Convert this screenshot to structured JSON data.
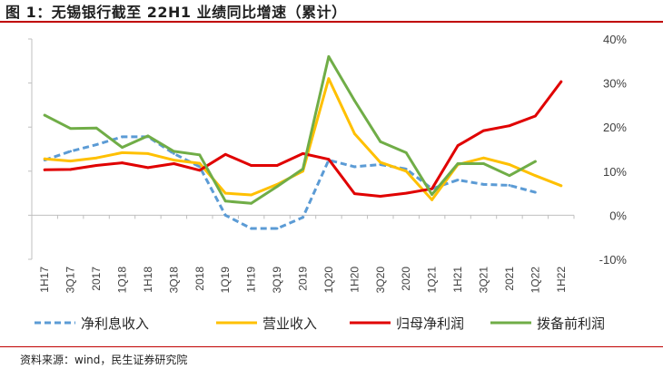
{
  "header": {
    "title": "图 1：无锡银行截至 22H1 业绩同比增速（累计）"
  },
  "footer": {
    "source": "资料来源：wind，民生证券研究院"
  },
  "chart_data": {
    "type": "line",
    "title": "图 1：无锡银行截至 22H1 业绩同比增速（累计）",
    "xlabel": "",
    "ylabel": "",
    "ylim": [
      -10,
      40
    ],
    "yticks": [
      -10,
      0,
      10,
      20,
      30,
      40
    ],
    "ytick_labels": [
      "-10%",
      "0%",
      "10%",
      "20%",
      "30%",
      "40%"
    ],
    "y_axis_side": "right",
    "grid": false,
    "legend_position": "bottom",
    "categories": [
      "1H17",
      "3Q17",
      "2017",
      "1Q18",
      "1H18",
      "3Q18",
      "2018",
      "1Q19",
      "1H19",
      "3Q19",
      "2019",
      "1Q20",
      "1H20",
      "3Q20",
      "2020",
      "1Q21",
      "1H21",
      "3Q21",
      "2021",
      "1Q22",
      "1H22"
    ],
    "series": [
      {
        "name": "净利息收入",
        "color": "#5b9bd5",
        "dashed": true,
        "values": [
          12.5,
          14.5,
          16,
          17.8,
          17.8,
          14,
          11,
          0,
          -3,
          -3,
          -0.5,
          12.5,
          11,
          11.5,
          10.5,
          6,
          8,
          7,
          6.8,
          5.2,
          null
        ]
      },
      {
        "name": "营业收入",
        "color": "#ffc000",
        "dashed": false,
        "values": [
          12.8,
          12.3,
          13,
          14.2,
          14,
          12.5,
          11.8,
          5,
          4.6,
          7,
          10,
          31,
          18.5,
          12,
          10,
          3.5,
          11.5,
          13,
          11.5,
          9,
          6.7
        ]
      },
      {
        "name": "归母净利润",
        "color": "#e00000",
        "dashed": false,
        "values": [
          10.3,
          10.4,
          11.3,
          11.9,
          10.8,
          11.7,
          10.2,
          13.8,
          11.3,
          11.3,
          14,
          12.7,
          4.9,
          4.3,
          5,
          6,
          15.8,
          19.2,
          20.3,
          22.5,
          30.3
        ]
      },
      {
        "name": "拨备前利润",
        "color": "#70ad47",
        "dashed": false,
        "values": [
          22.7,
          19.7,
          19.8,
          15.4,
          18,
          14.5,
          13.7,
          3.2,
          2.7,
          6.5,
          10.5,
          36,
          26,
          16.7,
          14.2,
          4.7,
          11.7,
          11.7,
          9,
          12.2,
          null
        ]
      }
    ]
  }
}
